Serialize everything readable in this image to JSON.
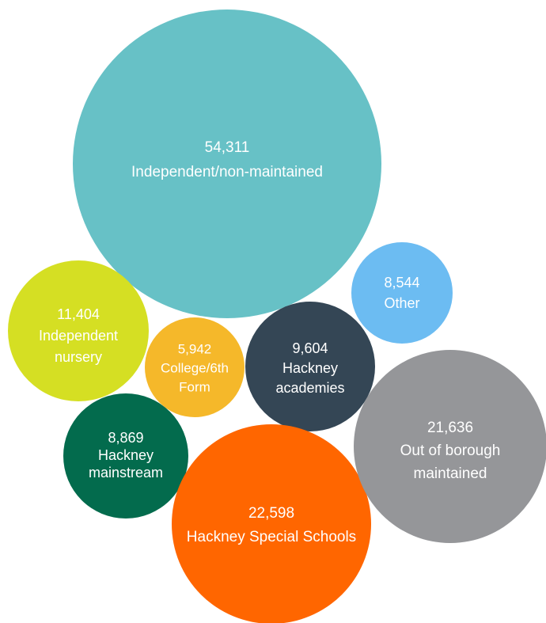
{
  "chart_data": {
    "type": "bubble",
    "items": [
      {
        "value": "54,311",
        "label": [
          "Independent/non-maintained"
        ],
        "color": "#67C1C6"
      },
      {
        "value": "11,404",
        "label": [
          "Independent",
          "nursery"
        ],
        "color": "#D5DF23"
      },
      {
        "value": "5,942",
        "label": [
          "College/6th",
          "Form"
        ],
        "color": "#F5B82A"
      },
      {
        "value": "9,604",
        "label": [
          "Hackney",
          "academies"
        ],
        "color": "#344655"
      },
      {
        "value": "8,544",
        "label": [
          "Other"
        ],
        "color": "#6CBCF2"
      },
      {
        "value": "8,869",
        "label": [
          "Hackney",
          "mainstream"
        ],
        "color": "#036B4D"
      },
      {
        "value": "22,598",
        "label": [
          "Hackney Special Schools"
        ],
        "color": "#FF6600"
      },
      {
        "value": "21,636",
        "label": [
          "Out of borough",
          "maintained"
        ],
        "color": "#959699"
      }
    ]
  }
}
